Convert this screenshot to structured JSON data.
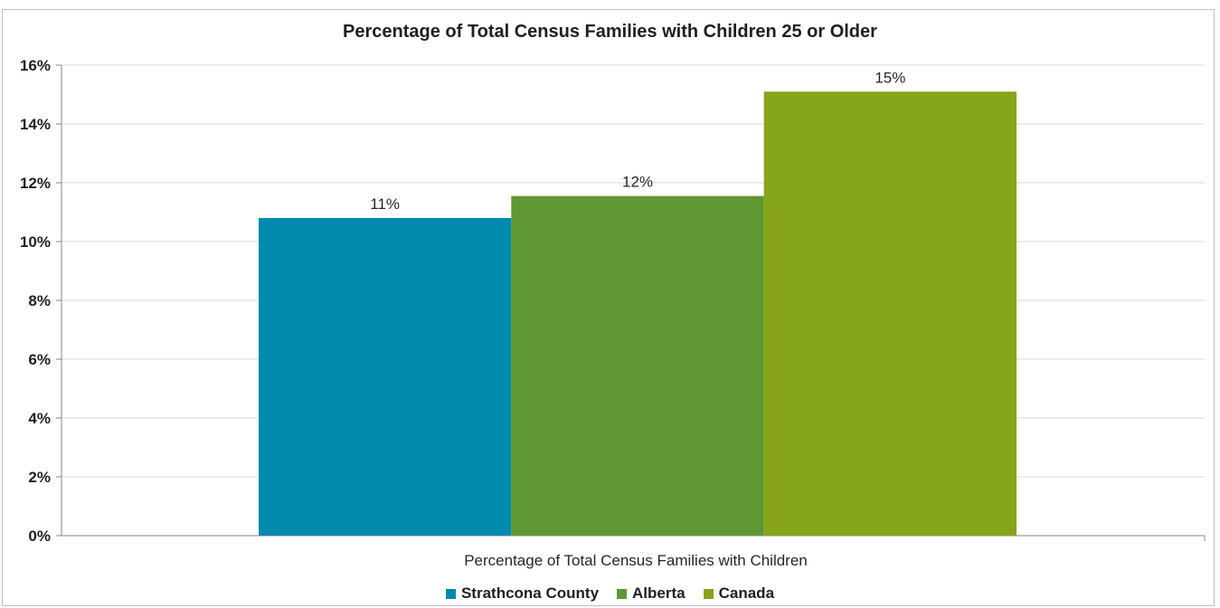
{
  "chart_data": {
    "type": "bar",
    "title": "Percentage of Total Census Families with Children 25 or Older",
    "xlabel": "",
    "ylabel": "",
    "categories": [
      "Percentage of Total Census Families with Children"
    ],
    "series": [
      {
        "name": "Strathcona County",
        "values": [
          10.8
        ],
        "label": "11%",
        "color": "#008aae"
      },
      {
        "name": "Alberta",
        "values": [
          11.55
        ],
        "label": "12%",
        "color": "#5f9735"
      },
      {
        "name": "Canada",
        "values": [
          15.1
        ],
        "label": "15%",
        "color": "#87a518"
      }
    ],
    "ylim": [
      0,
      16
    ],
    "yticks": [
      "0%",
      "2%",
      "4%",
      "6%",
      "8%",
      "10%",
      "12%",
      "14%",
      "16%"
    ],
    "grid": true,
    "legend_position": "bottom"
  }
}
